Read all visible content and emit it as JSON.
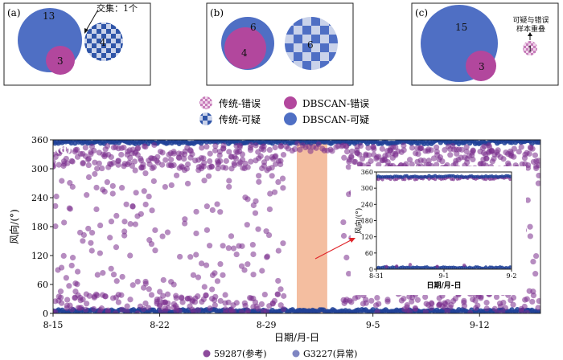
{
  "colors": {
    "dbscan_suspect": "#4f6fc4",
    "dbscan_error": "#b2479d",
    "traditional_suspect_a": "#2f55a8",
    "traditional_suspect_b": "#c9d2ea",
    "traditional_error_a": "#c77dbb",
    "traditional_error_b": "#f0d6ea",
    "series_ref": "#7a2e8c",
    "series_abnormal": "#1f3f96",
    "highlight_band": "#f2b38f"
  },
  "panels": {
    "a": {
      "label": "(a)",
      "dbscan_suspect": "13",
      "dbscan_error": "3",
      "traditional_suspect": "4",
      "intersect": "交集：1个"
    },
    "b": {
      "label": "(b)",
      "dbscan_suspect": "6",
      "dbscan_error": "4",
      "traditional_suspect": "6"
    },
    "c": {
      "label": "(c)",
      "dbscan_suspect": "15",
      "dbscan_error": "3",
      "traditional_error": "1",
      "overlap_line1": "可疑与错误",
      "overlap_line2": "样本重叠"
    }
  },
  "legend": {
    "traditional_error": "传统-错误",
    "dbscan_error": "DBSCAN-错误",
    "traditional_suspect": "传统-可疑",
    "dbscan_suspect": "DBSCAN-可疑"
  },
  "chart_data": {
    "type": "scatter",
    "panel_label": "(d)",
    "xlabel": "日期/月-日",
    "ylabel": "风向/(°)",
    "ylim": [
      0,
      360
    ],
    "yticks": [
      0,
      60,
      120,
      180,
      240,
      300,
      360
    ],
    "x_ticks": [
      "8-15",
      "8-22",
      "8-29",
      "9-5",
      "9-12"
    ],
    "highlight_range": [
      "8-31",
      "9-2"
    ],
    "series": [
      {
        "name": "59287(参考)"
      },
      {
        "name": "G3227(异常)"
      }
    ],
    "inset": {
      "ylabel": "风向/(°)",
      "xlabel": "日期/月-日",
      "ylim": [
        0,
        360
      ],
      "yticks": [
        0,
        60,
        120,
        180,
        240,
        300,
        360
      ],
      "x_ticks": [
        "8-31",
        "9-1",
        "9-2"
      ]
    }
  }
}
